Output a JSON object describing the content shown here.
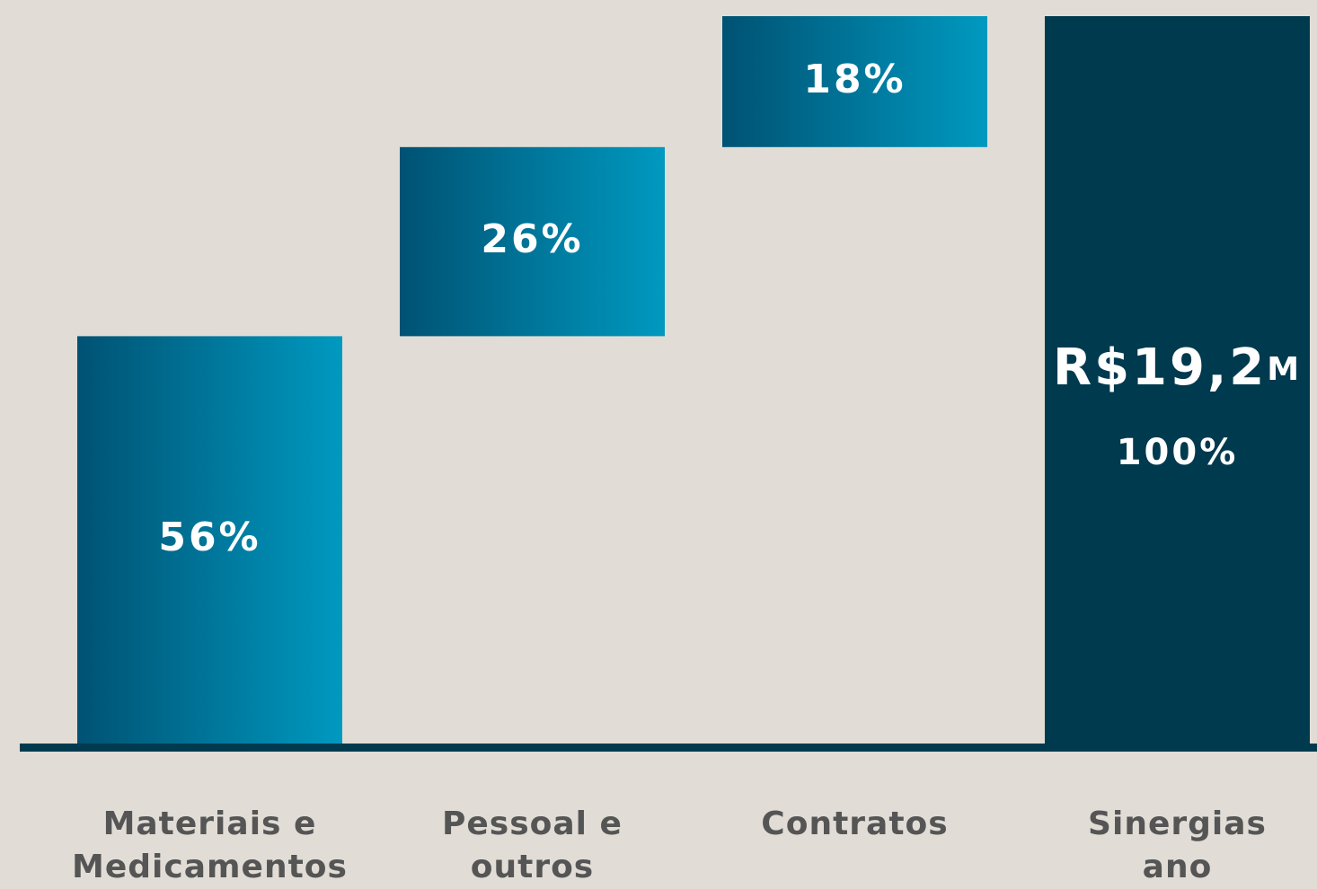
{
  "chart_data": {
    "type": "waterfall",
    "categories": [
      "Materiais e Medicamentos",
      "Pessoal e outros",
      "Contratos",
      "Sinergias ano"
    ],
    "values": [
      56,
      26,
      18,
      100
    ],
    "value_labels": [
      "56%",
      "26%",
      "18%",
      "100%"
    ],
    "is_total": [
      false,
      false,
      false,
      true
    ],
    "total_annotation": "R$19,2M",
    "ylim": [
      0,
      100
    ],
    "color": [
      "#005273",
      "#0099c0"
    ],
    "total_color": "#003a4f"
  }
}
